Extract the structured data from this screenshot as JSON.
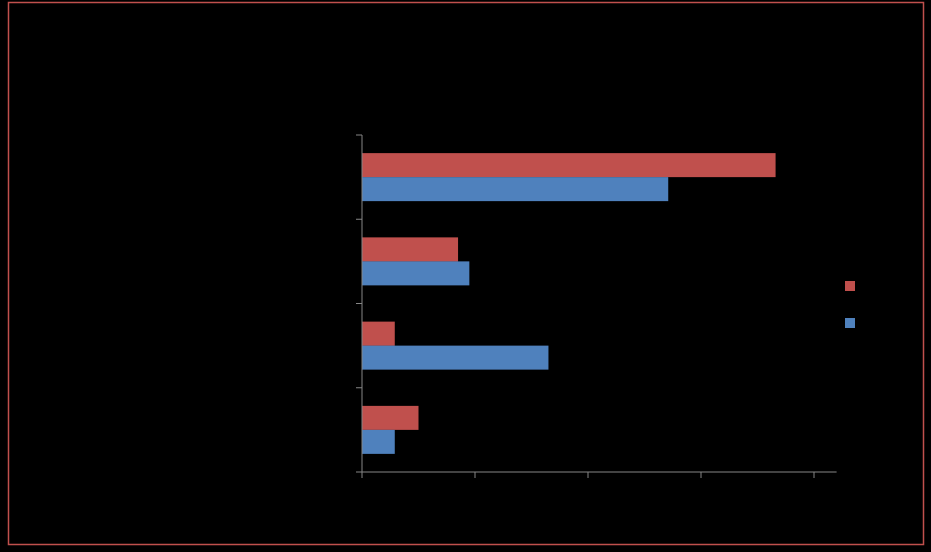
{
  "chart_data": {
    "type": "hbar",
    "categories": [
      null,
      null,
      null,
      null
    ],
    "series": [
      {
        "color": "#c0504d",
        "values": [
          3.66,
          0.85,
          0.29,
          0.5
        ]
      },
      {
        "color": "#4f81bd",
        "values": [
          2.71,
          0.95,
          1.65,
          0.29
        ]
      }
    ],
    "xlim": [
      0,
      4.2
    ],
    "xticks": [
      0,
      1,
      2,
      3,
      4
    ],
    "legend": "right",
    "background": "#000000",
    "border_color": "#c0504d",
    "axis_color": "#868686"
  }
}
